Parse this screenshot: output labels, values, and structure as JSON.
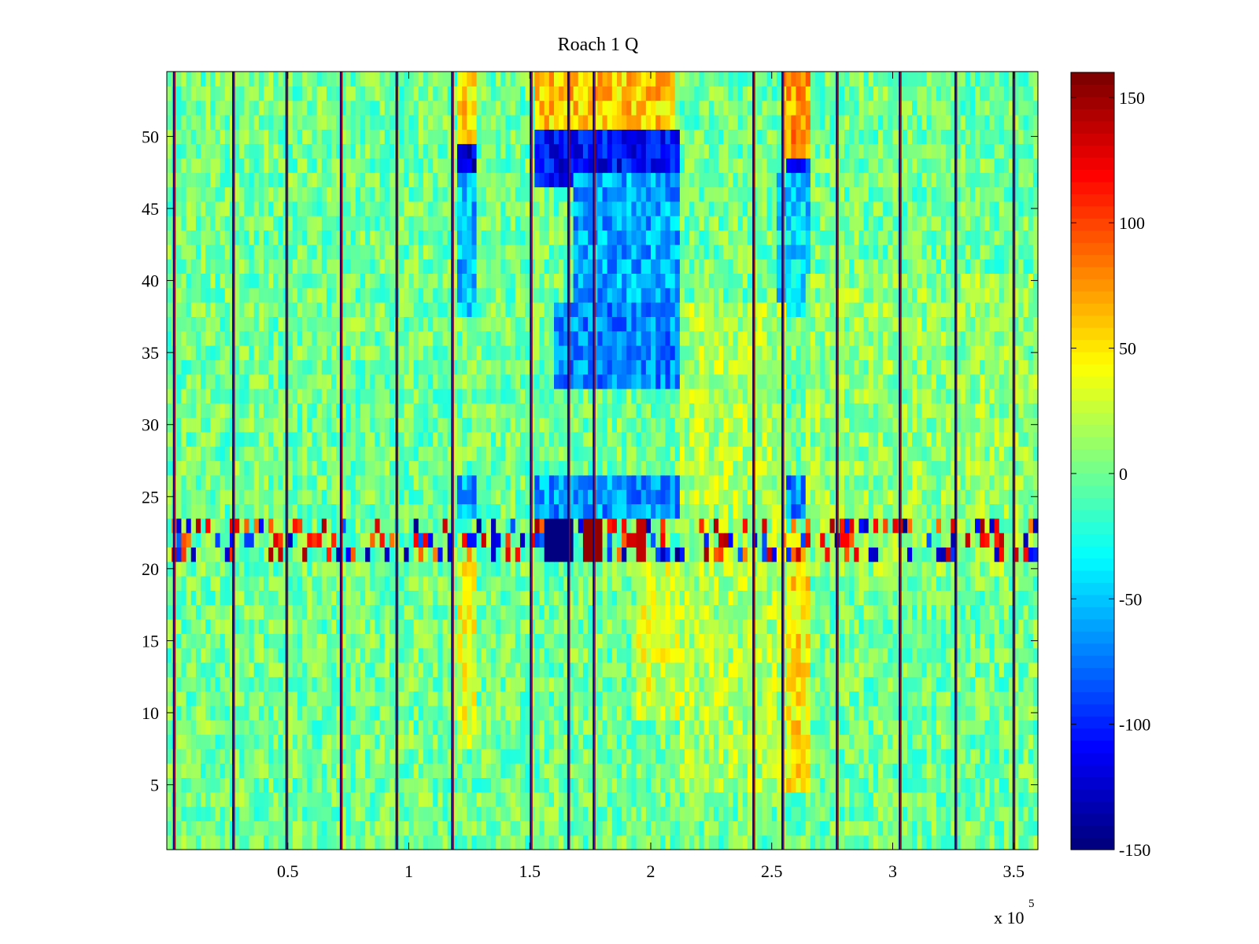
{
  "chart_data": {
    "type": "heatmap",
    "title": "Roach 1 Q",
    "xlabel": "",
    "ylabel": "",
    "x_exponent_label": "x 10",
    "x_exponent_power": "5",
    "xlim": [
      0,
      360000
    ],
    "ylim": [
      0.5,
      54.5
    ],
    "x_ticks": [
      0.5,
      1,
      1.5,
      2,
      2.5,
      3,
      3.5
    ],
    "x_tick_labels": [
      "0.5",
      "1",
      "1.5",
      "2",
      "2.5",
      "3",
      "3.5"
    ],
    "y_ticks": [
      5,
      10,
      15,
      20,
      25,
      30,
      35,
      40,
      45,
      50
    ],
    "y_tick_labels": [
      "5",
      "10",
      "15",
      "20",
      "25",
      "30",
      "35",
      "40",
      "45",
      "50"
    ],
    "rows": 54,
    "color_scale": "jet",
    "clim": [
      -150,
      160
    ],
    "colorbar_ticks": [
      150,
      100,
      50,
      0,
      -50,
      -100,
      -150
    ],
    "colorbar_tick_labels": [
      "150",
      "100",
      "50",
      "0",
      "-50",
      "-100",
      "-150"
    ],
    "vertical_stripes_x": [
      3000,
      27500,
      49500,
      72000,
      95000,
      118000,
      150500,
      166000,
      176500,
      242500,
      254500,
      277000,
      303000,
      326000,
      350000
    ],
    "regions": [
      {
        "x": [
          120000,
          128000
        ],
        "y": [
          47,
          50
        ],
        "value": -120
      },
      {
        "x": [
          152000,
          212000
        ],
        "y": [
          47,
          50
        ],
        "value": -110
      },
      {
        "x": [
          257000,
          265000
        ],
        "y": [
          47,
          50
        ],
        "value": -110
      },
      {
        "x": [
          120000,
          128000
        ],
        "y": [
          38,
          47
        ],
        "value": -55
      },
      {
        "x": [
          168000,
          212000
        ],
        "y": [
          38,
          47
        ],
        "value": -60
      },
      {
        "x": [
          252000,
          265000
        ],
        "y": [
          38,
          47
        ],
        "value": -45
      },
      {
        "x": [
          160000,
          212000
        ],
        "y": [
          33,
          38
        ],
        "value": -70
      },
      {
        "x": [
          120000,
          128000
        ],
        "y": [
          24,
          26
        ],
        "value": -60
      },
      {
        "x": [
          152000,
          212000
        ],
        "y": [
          24,
          26
        ],
        "value": -65
      },
      {
        "x": [
          255000,
          265000
        ],
        "y": [
          24,
          26
        ],
        "value": -70
      },
      {
        "x": [
          120000,
          128000
        ],
        "y": [
          50,
          55
        ],
        "value": 55
      },
      {
        "x": [
          152000,
          210000
        ],
        "y": [
          51,
          55
        ],
        "value": 60
      },
      {
        "x": [
          255000,
          265000
        ],
        "y": [
          49,
          55
        ],
        "value": 75
      },
      {
        "x": [
          255000,
          265000
        ],
        "y": [
          5,
          22
        ],
        "value": 50
      },
      {
        "x": [
          120000,
          128000
        ],
        "y": [
          8,
          20
        ],
        "value": 35
      },
      {
        "x": [
          195000,
          212000
        ],
        "y": [
          10,
          20
        ],
        "value": 30
      },
      {
        "x": [
          212000,
          255000
        ],
        "y": [
          5,
          38
        ],
        "value": 18
      },
      {
        "x": [
          265000,
          360000
        ],
        "y": [
          20,
          40
        ],
        "value": 10
      }
    ],
    "noisy_band_rows": [
      21,
      22,
      23
    ],
    "noisy_band_extremes": [
      {
        "x": [
          157000,
          167000
        ],
        "value": -150
      },
      {
        "x": [
          172000,
          179000
        ],
        "value": 155
      },
      {
        "x": [
          195000,
          198000
        ],
        "value": 140
      }
    ]
  }
}
